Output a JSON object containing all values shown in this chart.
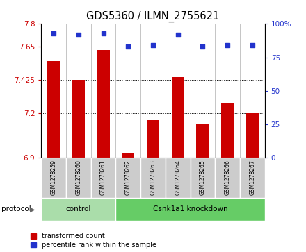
{
  "title": "GDS5360 / ILMN_2755621",
  "samples": [
    "GSM1278259",
    "GSM1278260",
    "GSM1278261",
    "GSM1278262",
    "GSM1278263",
    "GSM1278264",
    "GSM1278265",
    "GSM1278266",
    "GSM1278267"
  ],
  "transformed_counts": [
    7.55,
    7.425,
    7.625,
    6.93,
    7.15,
    7.44,
    7.13,
    7.27,
    7.2
  ],
  "percentile_ranks": [
    93,
    92,
    93,
    83,
    84,
    92,
    83,
    84,
    84
  ],
  "ylim_left": [
    6.9,
    7.8
  ],
  "ylim_right": [
    0,
    100
  ],
  "yticks_left": [
    6.9,
    7.2,
    7.425,
    7.65,
    7.8
  ],
  "ytick_labels_left": [
    "6.9",
    "7.2",
    "7.425",
    "7.65",
    "7.8"
  ],
  "yticks_right": [
    0,
    25,
    50,
    75,
    100
  ],
  "ytick_labels_right": [
    "0",
    "25",
    "50",
    "75",
    "100%"
  ],
  "bar_color": "#cc0000",
  "dot_color": "#2233cc",
  "groups": [
    {
      "label": "control",
      "indices": [
        0,
        1,
        2
      ],
      "color": "#aaddaa"
    },
    {
      "label": "Csnk1a1 knockdown",
      "indices": [
        3,
        4,
        5,
        6,
        7,
        8
      ],
      "color": "#66cc66"
    }
  ],
  "protocol_label": "protocol",
  "legend_bar_label": "transformed count",
  "legend_dot_label": "percentile rank within the sample",
  "bar_color_legend": "#cc0000",
  "dot_color_legend": "#2233cc",
  "bar_width": 0.5,
  "dot_size": 18,
  "sample_box_color": "#cccccc",
  "separator_color": "#bbbbbb"
}
